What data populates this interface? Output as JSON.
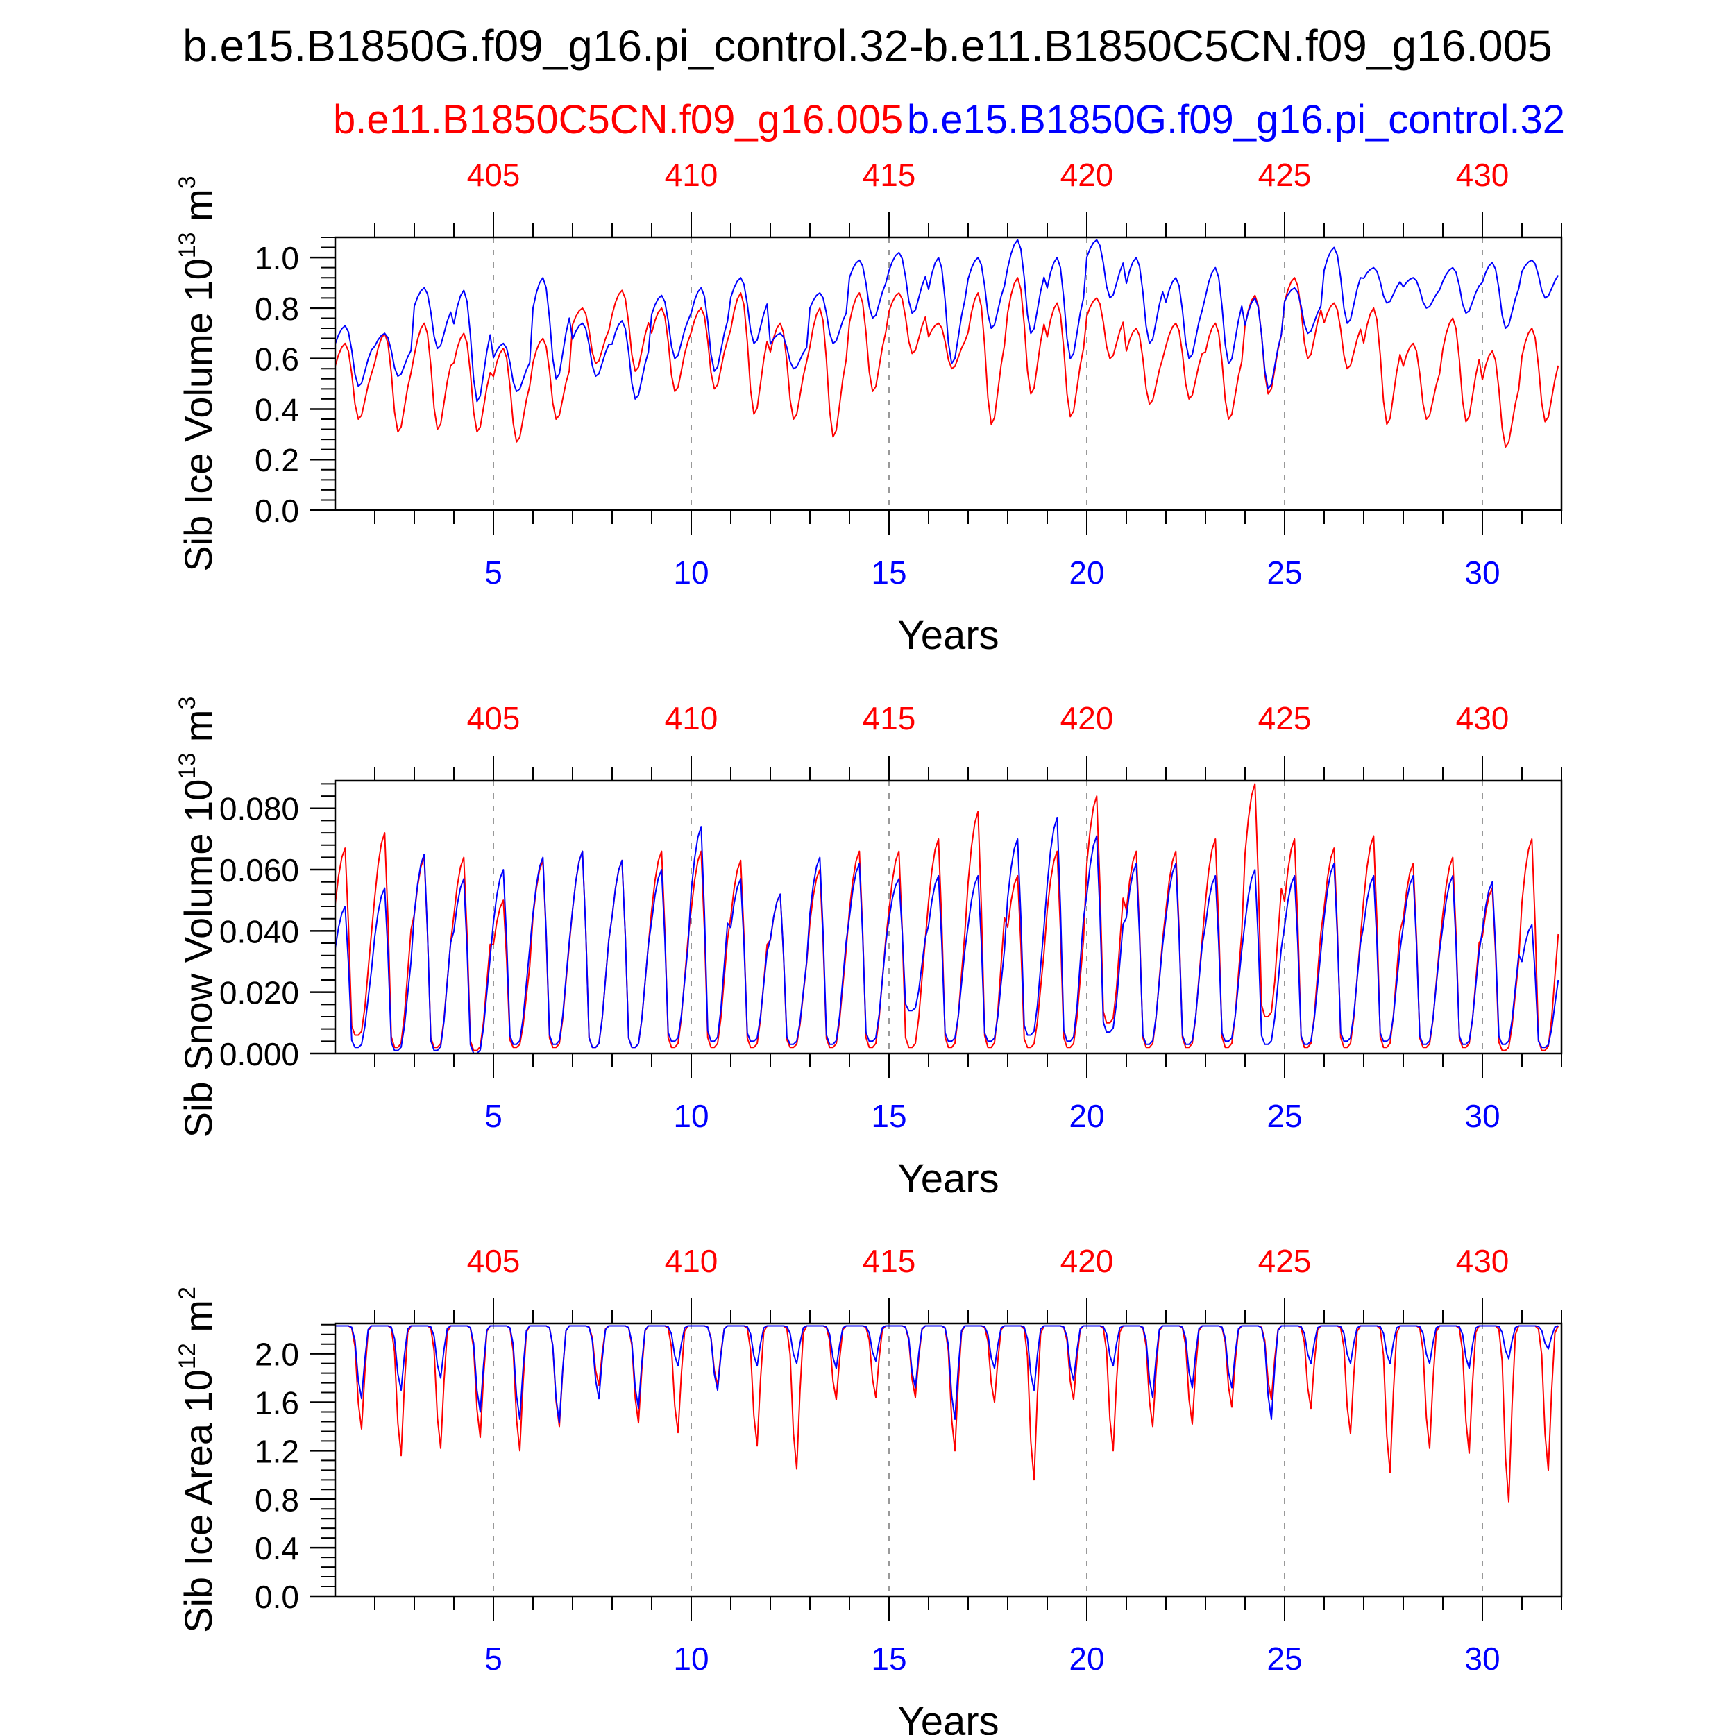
{
  "title": "b.e15.B1850G.f09_g16.pi_control.32-b.e11.B1850C5CN.f09_g16.005",
  "legend": {
    "red_label": "b.e11.B1850C5CN.f09_g16.005",
    "blue_label": "b.e15.B1850G.f09_g16.pi_control.32"
  },
  "colors": {
    "red": "#ff0000",
    "blue": "#0000ff",
    "axis": "#000000",
    "grid": "#999999"
  },
  "chart_data": [
    {
      "type": "line",
      "ylabel_main": "Sib Ice Volume 10",
      "ylabel_exp": "13",
      "ylabel_unit": " m",
      "ylabel_unit_exp": "3",
      "xlabel": "Years",
      "xlim": [
        1,
        32
      ],
      "ylim": [
        0,
        1.08
      ],
      "y_ticks": [
        "0.0",
        "0.2",
        "0.4",
        "0.6",
        "0.8",
        "1.0"
      ],
      "y_tick_values": [
        0,
        0.2,
        0.4,
        0.6,
        0.8,
        1.0
      ],
      "x_bottom_ticks": [
        "5",
        "10",
        "15",
        "20",
        "25",
        "30"
      ],
      "x_top_ticks": [
        "405",
        "410",
        "415",
        "420",
        "425",
        "430"
      ],
      "x_tick_values": [
        5,
        10,
        15,
        20,
        25,
        30
      ],
      "grid": "vertical dashed at major x ticks",
      "series": [
        {
          "name": "b.e11.B1850C5CN.f09_g16.005",
          "color": "#ff0000",
          "annual_max": [
            0.66,
            0.7,
            0.74,
            0.7,
            0.64,
            0.68,
            0.8,
            0.87,
            0.8,
            0.8,
            0.86,
            0.74,
            0.8,
            0.86,
            0.86,
            0.74,
            0.86,
            0.92,
            0.82,
            0.84,
            0.72,
            0.74,
            0.74,
            0.85,
            0.92,
            0.82,
            0.8,
            0.66,
            0.76,
            0.63,
            0.72
          ],
          "annual_min": [
            0.36,
            0.31,
            0.32,
            0.31,
            0.27,
            0.36,
            0.58,
            0.55,
            0.47,
            0.48,
            0.38,
            0.36,
            0.29,
            0.47,
            0.62,
            0.56,
            0.34,
            0.46,
            0.37,
            0.6,
            0.42,
            0.44,
            0.36,
            0.46,
            0.6,
            0.56,
            0.34,
            0.36,
            0.35,
            0.25,
            0.35
          ]
        },
        {
          "name": "b.e15.B1850G.f09_g16.pi_control.32",
          "color": "#0000ff",
          "annual_max": [
            0.73,
            0.7,
            0.88,
            0.87,
            0.66,
            0.92,
            0.74,
            0.75,
            0.85,
            0.88,
            0.92,
            0.7,
            0.86,
            0.99,
            1.02,
            1.0,
            1.0,
            1.07,
            1.0,
            1.07,
            1.0,
            0.92,
            0.96,
            0.84,
            0.88,
            1.04,
            0.96,
            0.92,
            0.96,
            0.98,
            0.99
          ],
          "annual_min": [
            0.49,
            0.53,
            0.64,
            0.43,
            0.47,
            0.52,
            0.53,
            0.44,
            0.6,
            0.55,
            0.66,
            0.56,
            0.66,
            0.76,
            0.78,
            0.58,
            0.72,
            0.7,
            0.6,
            0.84,
            0.66,
            0.6,
            0.58,
            0.48,
            0.7,
            0.74,
            0.82,
            0.8,
            0.78,
            0.72,
            0.84
          ]
        }
      ]
    },
    {
      "type": "line",
      "ylabel_main": "Sib Snow Volume 10",
      "ylabel_exp": "13",
      "ylabel_unit": " m",
      "ylabel_unit_exp": "3",
      "xlabel": "Years",
      "xlim": [
        1,
        32
      ],
      "ylim": [
        0,
        0.089
      ],
      "y_ticks": [
        "0.000",
        "0.020",
        "0.040",
        "0.060",
        "0.080"
      ],
      "y_tick_values": [
        0,
        0.02,
        0.04,
        0.06,
        0.08
      ],
      "x_bottom_ticks": [
        "5",
        "10",
        "15",
        "20",
        "25",
        "30"
      ],
      "x_top_ticks": [
        "405",
        "410",
        "415",
        "420",
        "425",
        "430"
      ],
      "x_tick_values": [
        5,
        10,
        15,
        20,
        25,
        30
      ],
      "grid": "vertical dashed at major x ticks",
      "series": [
        {
          "name": "b.e11.B1850C5CN.f09_g16.005",
          "color": "#ff0000",
          "annual_max": [
            0.067,
            0.072,
            0.064,
            0.064,
            0.05,
            0.063,
            0.066,
            0.063,
            0.066,
            0.066,
            0.063,
            0.052,
            0.06,
            0.066,
            0.066,
            0.07,
            0.079,
            0.058,
            0.066,
            0.084,
            0.066,
            0.066,
            0.07,
            0.088,
            0.07,
            0.067,
            0.071,
            0.062,
            0.064,
            0.054,
            0.07
          ],
          "annual_min": [
            0.006,
            0.002,
            0.002,
            0.001,
            0.002,
            0.002,
            0.002,
            0.002,
            0.002,
            0.002,
            0.002,
            0.002,
            0.002,
            0.002,
            0.002,
            0.002,
            0.002,
            0.002,
            0.002,
            0.01,
            0.002,
            0.002,
            0.002,
            0.012,
            0.002,
            0.002,
            0.002,
            0.002,
            0.002,
            0.001,
            0.001
          ]
        },
        {
          "name": "b.e15.B1850G.f09_g16.pi_control.32",
          "color": "#0000ff",
          "annual_max": [
            0.048,
            0.054,
            0.065,
            0.057,
            0.06,
            0.064,
            0.066,
            0.063,
            0.06,
            0.074,
            0.057,
            0.052,
            0.064,
            0.062,
            0.057,
            0.058,
            0.058,
            0.07,
            0.077,
            0.071,
            0.062,
            0.062,
            0.058,
            0.06,
            0.058,
            0.062,
            0.058,
            0.058,
            0.058,
            0.056,
            0.042
          ],
          "annual_min": [
            0.002,
            0.001,
            0.001,
            0.0,
            0.003,
            0.003,
            0.002,
            0.002,
            0.004,
            0.004,
            0.004,
            0.003,
            0.003,
            0.004,
            0.014,
            0.004,
            0.004,
            0.006,
            0.004,
            0.007,
            0.003,
            0.003,
            0.004,
            0.003,
            0.003,
            0.004,
            0.004,
            0.003,
            0.003,
            0.003,
            0.002
          ]
        }
      ]
    },
    {
      "type": "line",
      "ylabel_main": "Sib Ice Area 10",
      "ylabel_exp": "12",
      "ylabel_unit": " m",
      "ylabel_unit_exp": "2",
      "xlabel": "Years",
      "xlim": [
        1,
        32
      ],
      "ylim": [
        0,
        2.25
      ],
      "y_ticks": [
        "0.0",
        "0.4",
        "0.8",
        "1.2",
        "1.6",
        "2.0"
      ],
      "y_tick_values": [
        0,
        0.4,
        0.8,
        1.2,
        1.6,
        2.0
      ],
      "x_bottom_ticks": [
        "5",
        "10",
        "15",
        "20",
        "25",
        "30"
      ],
      "x_top_ticks": [
        "405",
        "410",
        "415",
        "420",
        "425",
        "430"
      ],
      "x_tick_values": [
        5,
        10,
        15,
        20,
        25,
        30
      ],
      "grid": "vertical dashed at major x ticks",
      "series": [
        {
          "name": "b.e11.B1850C5CN.f09_g16.005",
          "color": "#ff0000",
          "annual_max": [
            2.23,
            2.23,
            2.23,
            2.23,
            2.23,
            2.23,
            2.23,
            2.23,
            2.23,
            2.23,
            2.23,
            2.23,
            2.23,
            2.23,
            2.23,
            2.23,
            2.23,
            2.23,
            2.23,
            2.23,
            2.23,
            2.23,
            2.23,
            2.23,
            2.23,
            2.23,
            2.23,
            2.23,
            2.23,
            2.23,
            2.23
          ],
          "annual_min": [
            1.38,
            1.16,
            1.22,
            1.31,
            1.2,
            1.4,
            1.74,
            1.43,
            1.35,
            1.74,
            1.24,
            1.05,
            1.62,
            1.64,
            1.64,
            1.2,
            1.6,
            0.96,
            1.62,
            1.2,
            1.4,
            1.42,
            1.56,
            1.62,
            1.55,
            1.34,
            1.02,
            1.22,
            1.18,
            0.78,
            1.04
          ]
        },
        {
          "name": "b.e15.B1850G.f09_g16.pi_control.32",
          "color": "#0000ff",
          "annual_max": [
            2.23,
            2.23,
            2.23,
            2.23,
            2.23,
            2.23,
            2.23,
            2.23,
            2.23,
            2.23,
            2.23,
            2.23,
            2.23,
            2.23,
            2.23,
            2.23,
            2.23,
            2.23,
            2.23,
            2.23,
            2.23,
            2.23,
            2.23,
            2.23,
            2.23,
            2.23,
            2.23,
            2.23,
            2.23,
            2.23,
            2.23
          ],
          "annual_min": [
            1.63,
            1.7,
            1.8,
            1.52,
            1.46,
            1.43,
            1.63,
            1.55,
            1.9,
            1.7,
            1.9,
            1.92,
            1.88,
            1.94,
            1.72,
            1.46,
            1.88,
            1.7,
            1.78,
            1.9,
            1.64,
            1.72,
            1.72,
            1.46,
            1.92,
            1.92,
            1.92,
            1.92,
            1.88,
            1.96,
            2.04
          ]
        }
      ]
    }
  ]
}
